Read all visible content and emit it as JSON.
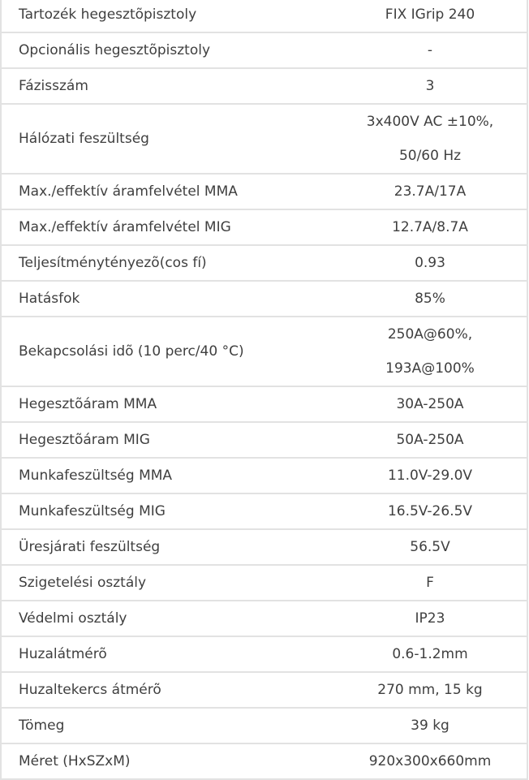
{
  "specs": [
    {
      "label": "Tartozék hegesztõpisztoly",
      "value": "FIX IGrip 240"
    },
    {
      "label": "Opcionális hegesztõpisztoly",
      "value": "-"
    },
    {
      "label": "Fázisszám",
      "value": "3"
    },
    {
      "label": "Hálózati feszültség",
      "value": "3x400V AC ±10%,\n50/60 Hz"
    },
    {
      "label": "Max./effektív áramfelvétel MMA",
      "value": "23.7A/17A"
    },
    {
      "label": "Max./effektív áramfelvétel MIG",
      "value": "12.7A/8.7A"
    },
    {
      "label": "Teljesítménytényezõ(cos fí)",
      "value": "0.93"
    },
    {
      "label": "Hatásfok",
      "value": "85%"
    },
    {
      "label": "Bekapcsolási idõ (10 perc/40 °C)",
      "value": "250A@60%,\n193A@100%"
    },
    {
      "label": "Hegesztõáram MMA",
      "value": "30A-250A"
    },
    {
      "label": "Hegesztõáram MIG",
      "value": "50A-250A"
    },
    {
      "label": "Munkafeszültség MMA",
      "value": "11.0V-29.0V"
    },
    {
      "label": "Munkafeszültség MIG",
      "value": "16.5V-26.5V"
    },
    {
      "label": "Üresjárati feszültség",
      "value": "56.5V"
    },
    {
      "label": "Szigetelési osztály",
      "value": "F"
    },
    {
      "label": "Védelmi osztály",
      "value": "IP23"
    },
    {
      "label": "Huzalátmérõ",
      "value": "0.6-1.2mm"
    },
    {
      "label": "Huzaltekercs átmérõ",
      "value": "270 mm, 15 kg"
    },
    {
      "label": "Tömeg",
      "value": "39 kg"
    },
    {
      "label": "Méret (HxSZxM)",
      "value": "920x300x660mm"
    }
  ]
}
